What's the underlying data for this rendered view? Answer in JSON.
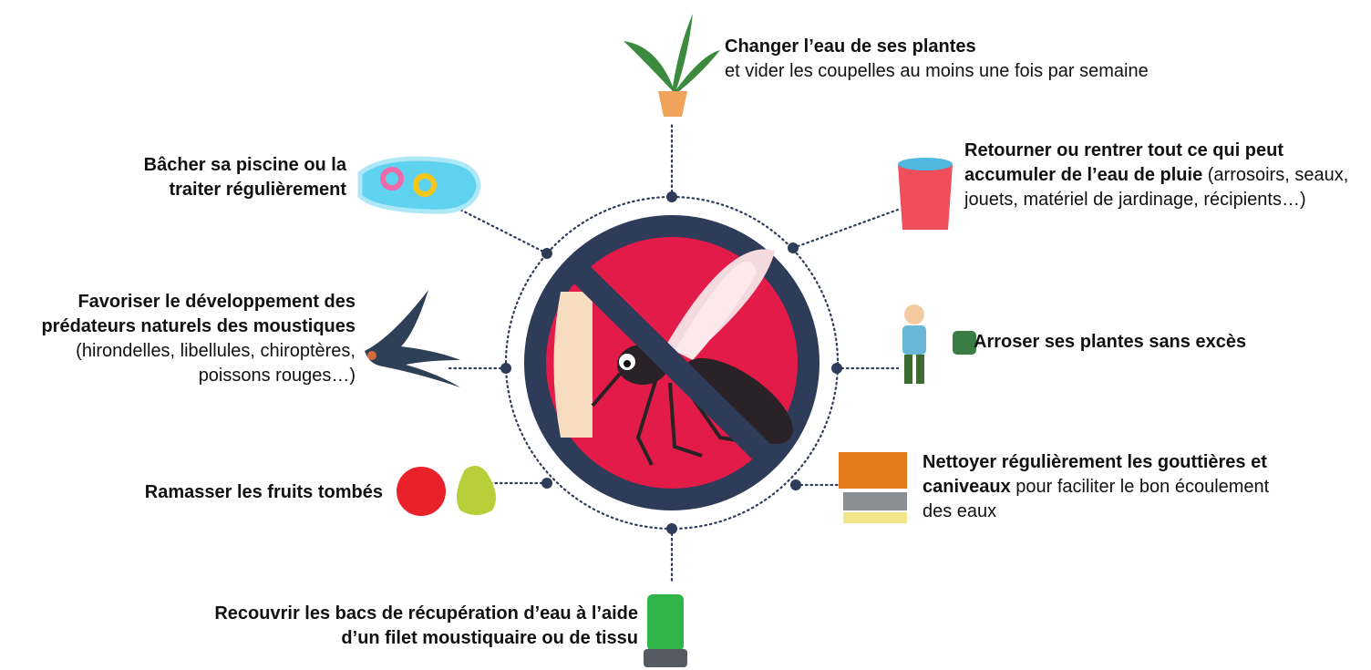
{
  "items": [
    {
      "bold": "Changer l’eau de ses plantes",
      "text": "et vider les coupelles au moins une fois par semaine"
    },
    {
      "bold": "Bâcher sa piscine ou la traiter régulièrement"
    },
    {
      "bold": "Retourner ou rentrer tout ce qui peut accumuler de l’eau de pluie",
      "text": " (arrosoirs, seaux, jouets, matériel de jardinage, récipients…)"
    },
    {
      "bold": "Favoriser le développement des prédateurs naturels des moustiques",
      "text": " (hirondelles, libellules, chiroptères, poissons rouges…)"
    },
    {
      "bold": "Arroser ses plantes sans excès"
    },
    {
      "bold": "Ramasser les fruits tombés"
    },
    {
      "bold": "Nettoyer régulièrement les gouttières et caniveaux",
      "text": " pour faciliter le bon écoulement des eaux"
    },
    {
      "bold": "Recouvrir les bacs de récupération d’eau à l’aide d’un filet moustiquaire ou de tissu"
    }
  ]
}
